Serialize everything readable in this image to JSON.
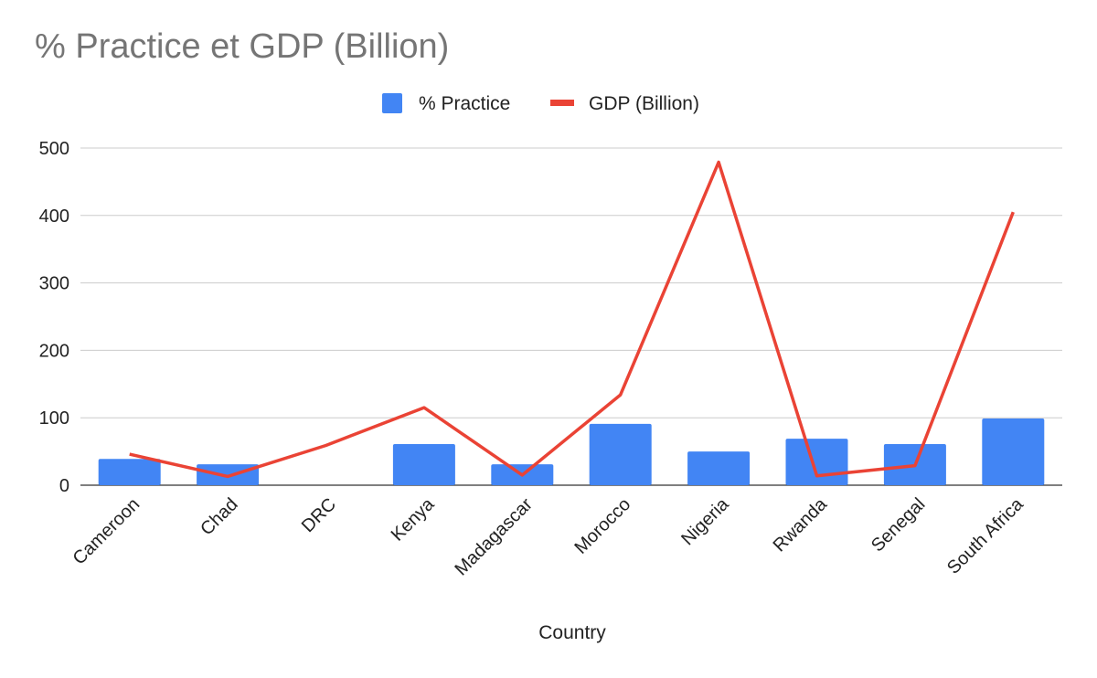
{
  "chart_data": {
    "type": "bar",
    "title": "% Practice et GDP (Billion)",
    "xlabel": "Country",
    "ylabel": "",
    "ylim": [
      0,
      500
    ],
    "yticks": [
      "0",
      "100",
      "200",
      "300",
      "400",
      "500"
    ],
    "grid": true,
    "legend_position": "top",
    "categories": [
      "Cameroon",
      "Chad",
      "DRC",
      "Kenya",
      "Madagascar",
      "Morocco",
      "Nigeria",
      "Rwanda",
      "Senegal",
      "South Africa"
    ],
    "series": [
      {
        "name": "% Practice",
        "type": "bar",
        "color": "#4285f4",
        "values": [
          39,
          31,
          0,
          61,
          31,
          91,
          50,
          69,
          61,
          99
        ]
      },
      {
        "name": "GDP (Billion)",
        "type": "line",
        "color": "#ea4335",
        "values": [
          46,
          13,
          59,
          115,
          15,
          134,
          479,
          14,
          29,
          405
        ]
      }
    ]
  }
}
